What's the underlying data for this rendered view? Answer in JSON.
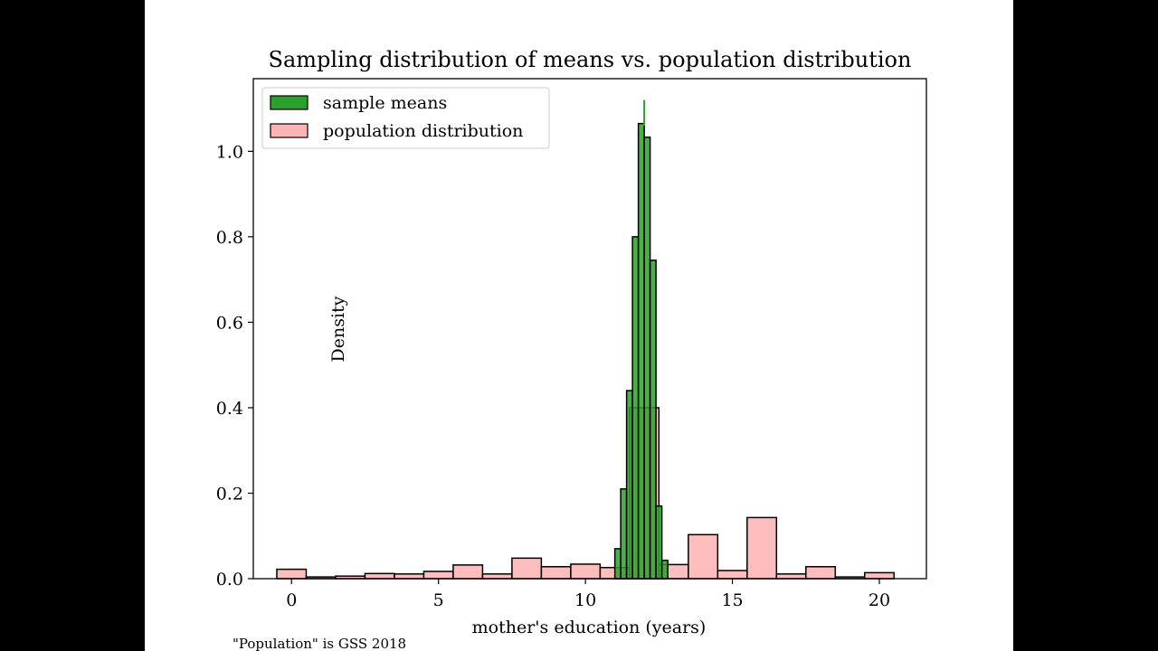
{
  "caption": "\"Population\" is GSS 2018",
  "colors": {
    "background": "#000000",
    "sample_fill": "#2ca02c",
    "population_fill": "#ffb3b3",
    "mean_line": "#2ca02c",
    "edge": "#000000"
  },
  "chart_data": {
    "type": "histogram",
    "title": "Sampling distribution of means vs. population distribution",
    "xlabel": "mother's education (years)",
    "ylabel": "Density",
    "xlim": [
      -1.3,
      21.6
    ],
    "ylim": [
      0,
      1.17
    ],
    "xticks": [
      0,
      5,
      10,
      15,
      20
    ],
    "yticks": [
      0.0,
      0.2,
      0.4,
      0.6,
      0.8,
      1.0
    ],
    "ytick_labels": [
      "0.0",
      "0.2",
      "0.4",
      "0.6",
      "0.8",
      "1.0"
    ],
    "legend_position": "upper-left",
    "mean_line_x": 12.0,
    "mean_line_range": [
      1.06,
      1.12
    ],
    "series": [
      {
        "name": "population distribution",
        "fill": "#ffb3b3",
        "bins": [
          {
            "x0": -0.5,
            "x1": 0.5,
            "value": 0.022
          },
          {
            "x0": 0.5,
            "x1": 1.5,
            "value": 0.004
          },
          {
            "x0": 1.5,
            "x1": 2.5,
            "value": 0.006
          },
          {
            "x0": 2.5,
            "x1": 3.5,
            "value": 0.012
          },
          {
            "x0": 3.5,
            "x1": 4.5,
            "value": 0.011
          },
          {
            "x0": 4.5,
            "x1": 5.5,
            "value": 0.017
          },
          {
            "x0": 5.5,
            "x1": 6.5,
            "value": 0.032
          },
          {
            "x0": 6.5,
            "x1": 7.5,
            "value": 0.011
          },
          {
            "x0": 7.5,
            "x1": 8.5,
            "value": 0.048
          },
          {
            "x0": 8.5,
            "x1": 9.5,
            "value": 0.028
          },
          {
            "x0": 9.5,
            "x1": 10.5,
            "value": 0.034
          },
          {
            "x0": 10.5,
            "x1": 11.5,
            "value": 0.026
          },
          {
            "x0": 11.5,
            "x1": 12.5,
            "value": 0.4
          },
          {
            "x0": 12.5,
            "x1": 13.5,
            "value": 0.033
          },
          {
            "x0": 13.5,
            "x1": 14.5,
            "value": 0.103
          },
          {
            "x0": 14.5,
            "x1": 15.5,
            "value": 0.019
          },
          {
            "x0": 15.5,
            "x1": 16.5,
            "value": 0.143
          },
          {
            "x0": 16.5,
            "x1": 17.5,
            "value": 0.011
          },
          {
            "x0": 17.5,
            "x1": 18.5,
            "value": 0.028
          },
          {
            "x0": 18.5,
            "x1": 19.5,
            "value": 0.004
          },
          {
            "x0": 19.5,
            "x1": 20.5,
            "value": 0.014
          }
        ]
      },
      {
        "name": "sample means",
        "fill": "#2ca02c",
        "bins": [
          {
            "x0": 11.0,
            "x1": 11.2,
            "value": 0.07
          },
          {
            "x0": 11.2,
            "x1": 11.4,
            "value": 0.21
          },
          {
            "x0": 11.4,
            "x1": 11.6,
            "value": 0.44
          },
          {
            "x0": 11.6,
            "x1": 11.8,
            "value": 0.8
          },
          {
            "x0": 11.8,
            "x1": 12.0,
            "value": 1.065
          },
          {
            "x0": 12.0,
            "x1": 12.2,
            "value": 1.033
          },
          {
            "x0": 12.2,
            "x1": 12.4,
            "value": 0.745
          },
          {
            "x0": 12.4,
            "x1": 12.6,
            "value": 0.17
          },
          {
            "x0": 12.6,
            "x1": 12.8,
            "value": 0.043
          }
        ]
      }
    ]
  }
}
